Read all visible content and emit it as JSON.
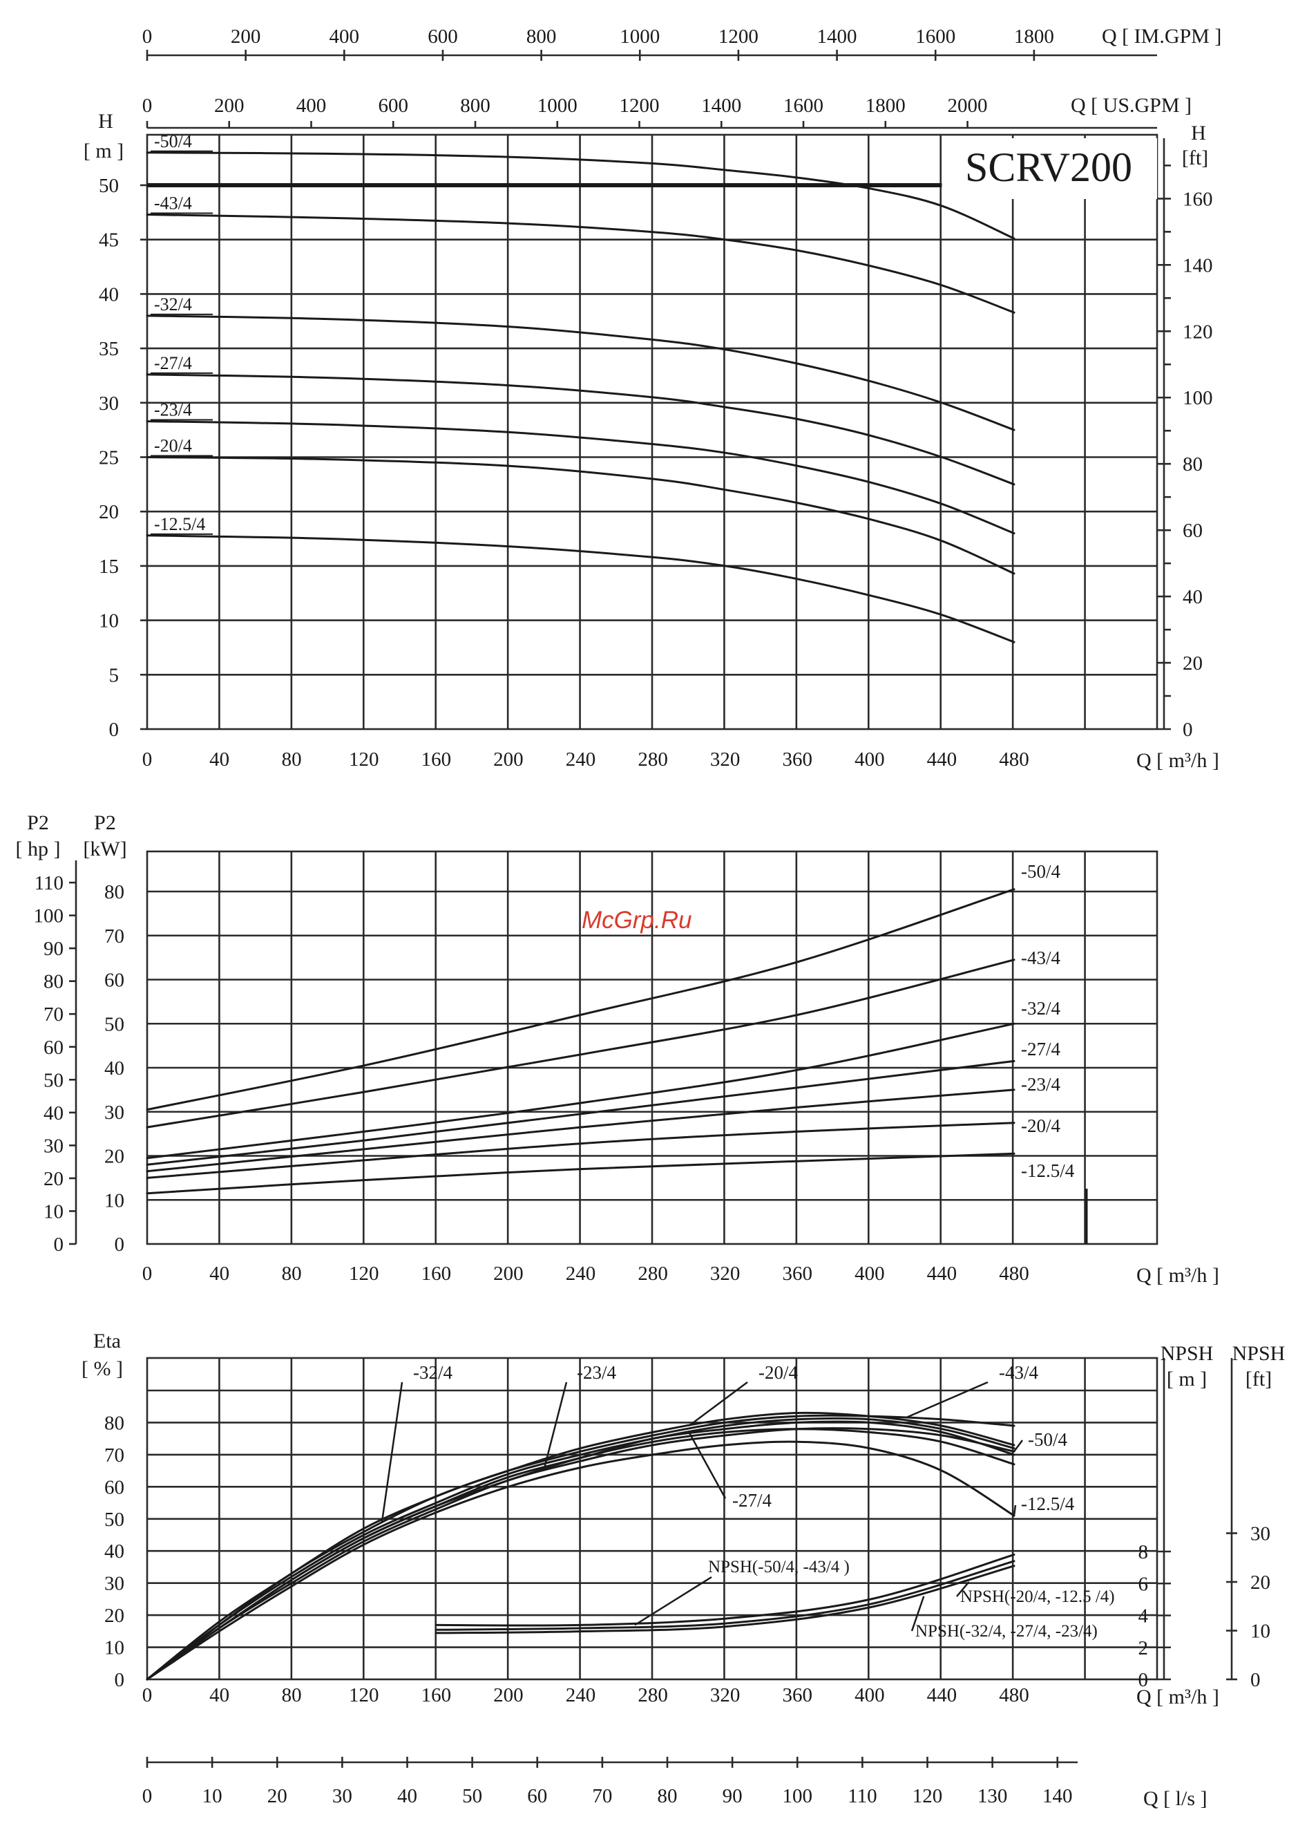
{
  "watermark": "McGrp.Ru",
  "colors": {
    "line": "#1a1a1a",
    "grid": "#2a2a2a",
    "watermark": "#d93a2b",
    "background": "#ffffff"
  },
  "chart_data": [
    {
      "id": "head",
      "type": "line",
      "title": "SCRV200",
      "xlabel": "Q [ m³/h ]",
      "ylabel": "H [ m ]",
      "ylabel_right": "H [ft]",
      "xlim": [
        0,
        560
      ],
      "ylim": [
        0,
        55
      ],
      "x_ticks": [
        "0",
        "40",
        "80",
        "120",
        "160",
        "200",
        "240",
        "280",
        "320",
        "360",
        "400",
        "440",
        "480"
      ],
      "y_ticks": [
        "0",
        "5",
        "10",
        "15",
        "20",
        "25",
        "30",
        "35",
        "40",
        "45",
        "50"
      ],
      "y_right_ticks": [
        "0",
        "20",
        "40",
        "60",
        "80",
        "100",
        "120",
        "140",
        "160"
      ],
      "top_axis_us": {
        "label": "Q [ US.GPM ]",
        "ticks": [
          "0",
          "200",
          "400",
          "600",
          "800",
          "1000",
          "1200",
          "1400",
          "1600",
          "1800",
          "2000"
        ]
      },
      "top_axis_im": {
        "label": "Q [ IM.GPM ]",
        "ticks": [
          "0",
          "200",
          "400",
          "600",
          "800",
          "1000",
          "1200",
          "1400",
          "1600",
          "1800"
        ]
      },
      "limit_line": {
        "from_x": 0,
        "to_x": 440,
        "y": 50
      },
      "series": [
        {
          "name": "-50/4",
          "x": [
            0,
            100,
            200,
            280,
            320,
            360,
            400,
            440,
            480
          ],
          "y": [
            53.0,
            52.9,
            52.6,
            52.0,
            51.4,
            50.7,
            49.7,
            48.1,
            45.1
          ]
        },
        {
          "name": "-43/4",
          "x": [
            0,
            100,
            200,
            280,
            320,
            360,
            400,
            440,
            480
          ],
          "y": [
            47.3,
            47.0,
            46.5,
            45.7,
            45.0,
            44.0,
            42.6,
            40.8,
            38.3
          ]
        },
        {
          "name": "-32/4",
          "x": [
            0,
            100,
            200,
            280,
            320,
            360,
            400,
            440,
            480
          ],
          "y": [
            38.0,
            37.7,
            37.0,
            35.8,
            34.9,
            33.6,
            32.0,
            30.0,
            27.5
          ]
        },
        {
          "name": "-27/4",
          "x": [
            0,
            100,
            200,
            280,
            320,
            360,
            400,
            440,
            480
          ],
          "y": [
            32.6,
            32.3,
            31.6,
            30.5,
            29.6,
            28.5,
            27.0,
            25.0,
            22.5
          ]
        },
        {
          "name": "-23/4",
          "x": [
            0,
            100,
            200,
            280,
            320,
            360,
            400,
            440,
            480
          ],
          "y": [
            28.3,
            28.0,
            27.3,
            26.2,
            25.4,
            24.2,
            22.7,
            20.7,
            18.0
          ]
        },
        {
          "name": "-20/4",
          "x": [
            0,
            100,
            200,
            280,
            320,
            360,
            400,
            440,
            480
          ],
          "y": [
            25.0,
            24.8,
            24.2,
            23.0,
            22.0,
            20.8,
            19.3,
            17.3,
            14.3
          ]
        },
        {
          "name": "-12.5/4",
          "x": [
            0,
            100,
            200,
            280,
            320,
            360,
            400,
            440,
            480
          ],
          "y": [
            17.8,
            17.5,
            16.8,
            15.8,
            15.0,
            13.8,
            12.3,
            10.5,
            8.0
          ]
        }
      ]
    },
    {
      "id": "power",
      "type": "line",
      "xlabel": "Q [ m³/h ]",
      "ylabel": "P2 [kW]",
      "ylabel_left": "P2 [ hp ]",
      "xlim": [
        0,
        560
      ],
      "ylim": [
        0,
        90
      ],
      "x_ticks": [
        "0",
        "40",
        "80",
        "120",
        "160",
        "200",
        "240",
        "280",
        "320",
        "360",
        "400",
        "440",
        "480"
      ],
      "y_ticks": [
        "0",
        "10",
        "20",
        "30",
        "40",
        "50",
        "60",
        "70",
        "80"
      ],
      "hp_ticks": [
        "0",
        "10",
        "20",
        "30",
        "40",
        "50",
        "60",
        "70",
        "80",
        "90",
        "100",
        "110"
      ],
      "series": [
        {
          "name": "-50/4",
          "x": [
            0,
            120,
            240,
            360,
            480
          ],
          "y": [
            30.5,
            40.5,
            52.0,
            64.0,
            80.5
          ]
        },
        {
          "name": "-43/4",
          "x": [
            0,
            120,
            240,
            360,
            480
          ],
          "y": [
            26.5,
            34.5,
            43.0,
            52.0,
            64.5
          ]
        },
        {
          "name": "-32/4",
          "x": [
            0,
            120,
            240,
            360,
            480
          ],
          "y": [
            19.5,
            25.5,
            32.0,
            39.5,
            50.0
          ]
        },
        {
          "name": "-27/4",
          "x": [
            0,
            120,
            240,
            360,
            480
          ],
          "y": [
            18.0,
            23.5,
            29.5,
            35.5,
            41.5
          ]
        },
        {
          "name": "-23/4",
          "x": [
            0,
            120,
            240,
            360,
            480
          ],
          "y": [
            16.5,
            21.5,
            26.5,
            31.0,
            35.0
          ]
        },
        {
          "name": "-20/4",
          "x": [
            0,
            120,
            240,
            360,
            480
          ],
          "y": [
            15.0,
            19.0,
            22.8,
            25.5,
            27.5
          ]
        },
        {
          "name": "-12.5/4",
          "x": [
            0,
            120,
            240,
            360,
            480
          ],
          "y": [
            11.5,
            14.5,
            17.0,
            18.8,
            20.5
          ]
        }
      ]
    },
    {
      "id": "efficiency",
      "type": "line",
      "xlabel": "Q [ m³/h ]",
      "ylabel": "Eta [ % ]",
      "ylabel_npsh_m": "NPSH [ m ]",
      "ylabel_npsh_ft": "NPSH [ft]",
      "xlim": [
        0,
        560
      ],
      "ylim": [
        0,
        100
      ],
      "x_ticks": [
        "0",
        "40",
        "80",
        "120",
        "160",
        "200",
        "240",
        "280",
        "320",
        "360",
        "400",
        "440",
        "480"
      ],
      "y_ticks": [
        "0",
        "10",
        "20",
        "30",
        "40",
        "50",
        "60",
        "70",
        "80"
      ],
      "npsh_m_ticks": [
        "0",
        "2",
        "4",
        "6",
        "8"
      ],
      "npsh_ft_ticks": [
        "0",
        "10",
        "20",
        "30"
      ],
      "bottom_axis_ls": {
        "label": "Q [ l/s ]",
        "ticks": [
          "0",
          "10",
          "20",
          "30",
          "40",
          "50",
          "60",
          "70",
          "80",
          "90",
          "100",
          "110",
          "120",
          "130",
          "140"
        ]
      },
      "series": [
        {
          "name": "-43/4",
          "x": [
            0,
            40,
            80,
            120,
            160,
            200,
            240,
            280,
            320,
            360,
            400,
            440,
            480
          ],
          "y": [
            0,
            18,
            33,
            47,
            57,
            65,
            71,
            76,
            80,
            82,
            82,
            81,
            79
          ]
        },
        {
          "name": "-32/4",
          "x": [
            0,
            40,
            80,
            120,
            160,
            200,
            240,
            280,
            320,
            360,
            400,
            440,
            480
          ],
          "y": [
            0,
            17,
            33,
            46,
            57,
            65,
            72,
            77,
            81,
            83,
            82,
            79,
            73
          ]
        },
        {
          "name": "-23/4",
          "x": [
            0,
            40,
            80,
            120,
            160,
            200,
            240,
            280,
            320,
            360,
            400,
            440,
            480
          ],
          "y": [
            0,
            17,
            32,
            45,
            55,
            64,
            70,
            75,
            79,
            81,
            81,
            78,
            72
          ]
        },
        {
          "name": "-20/4",
          "x": [
            0,
            40,
            80,
            120,
            160,
            200,
            240,
            280,
            320,
            360,
            400,
            440,
            480
          ],
          "y": [
            0,
            16,
            31,
            44,
            54,
            63,
            69,
            75,
            78,
            80,
            80,
            77,
            70
          ]
        },
        {
          "name": "-27/4",
          "x": [
            0,
            40,
            80,
            120,
            160,
            200,
            240,
            280,
            320,
            360,
            400,
            440,
            480
          ],
          "y": [
            0,
            16,
            31,
            44,
            54,
            62,
            69,
            74,
            77,
            78,
            77,
            74,
            67
          ]
        },
        {
          "name": "-50/4",
          "x": [
            0,
            40,
            80,
            120,
            160,
            200,
            240,
            280,
            320,
            360,
            400,
            440,
            480
          ],
          "y": [
            0,
            16,
            30,
            43,
            53,
            62,
            68,
            73,
            76,
            78,
            78,
            76,
            71
          ]
        },
        {
          "name": "-12.5/4",
          "x": [
            0,
            40,
            80,
            120,
            160,
            200,
            240,
            280,
            320,
            360,
            400,
            440,
            480
          ],
          "y": [
            0,
            15,
            29,
            42,
            52,
            60,
            66,
            70,
            73,
            74,
            72,
            65,
            51
          ]
        }
      ],
      "npsh_series": [
        {
          "name": "NPSH(-50/4, -43/4 )",
          "x": [
            160,
            240,
            320,
            400,
            480
          ],
          "y_m": [
            3.4,
            3.4,
            3.8,
            5.0,
            7.8
          ]
        },
        {
          "name": "NPSH(-20/4, -12.5 /4)",
          "x": [
            160,
            240,
            320,
            400,
            480
          ],
          "y_m": [
            2.9,
            3.0,
            3.3,
            4.5,
            7.1
          ]
        },
        {
          "name": "NPSH(-32/4, -27/4, -23/4)",
          "x": [
            160,
            240,
            320,
            400,
            480
          ],
          "y_m": [
            3.1,
            3.2,
            3.5,
            4.7,
            7.4
          ]
        }
      ]
    }
  ]
}
